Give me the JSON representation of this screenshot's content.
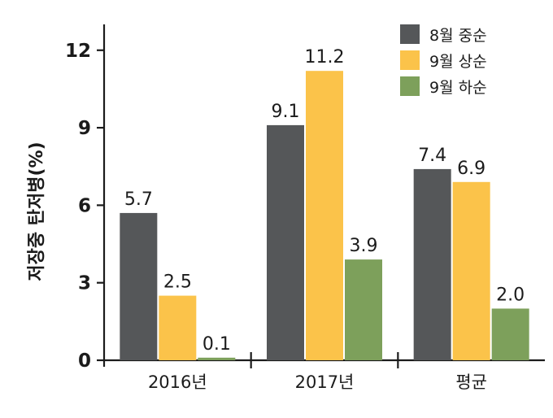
{
  "chart_data": {
    "type": "bar",
    "categories": [
      "2016년",
      "2017년",
      "평균"
    ],
    "series": [
      {
        "name": "8월 중순",
        "color": "#555759",
        "values": [
          5.7,
          9.1,
          7.4
        ]
      },
      {
        "name": "9월 상순",
        "color": "#fbc34a",
        "values": [
          2.5,
          11.2,
          6.9
        ]
      },
      {
        "name": "9월 하순",
        "color": "#7da05b",
        "values": [
          0.1,
          3.9,
          2.0
        ]
      }
    ],
    "data_labels": [
      [
        "5.7",
        "2.5",
        "0.1"
      ],
      [
        "9.1",
        "11.2",
        "3.9"
      ],
      [
        "7.4",
        "6.9",
        "2.0"
      ]
    ],
    "ylabel": "저장중 탄저병(%)",
    "xlabel": "",
    "ylim": [
      0,
      13
    ],
    "yticks": [
      0,
      3,
      6,
      9,
      12
    ],
    "ytick_labels": [
      "0",
      "3",
      "6",
      "9",
      "12"
    ],
    "grid": false,
    "legend_position": "top-right"
  }
}
